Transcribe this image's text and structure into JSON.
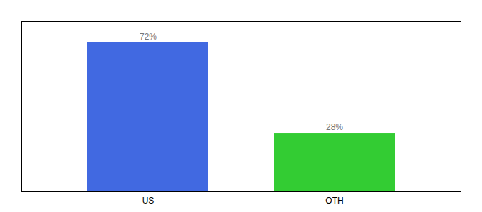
{
  "chart_data": {
    "type": "bar",
    "categories": [
      "US",
      "OTH"
    ],
    "values": [
      72,
      28
    ],
    "colors": [
      "#4169e1",
      "#33cc33"
    ],
    "ylim": [
      0,
      82
    ],
    "yticks": [],
    "tick_labels": "x",
    "data_labels": true,
    "value_labels": [
      "72%",
      "28%"
    ]
  }
}
